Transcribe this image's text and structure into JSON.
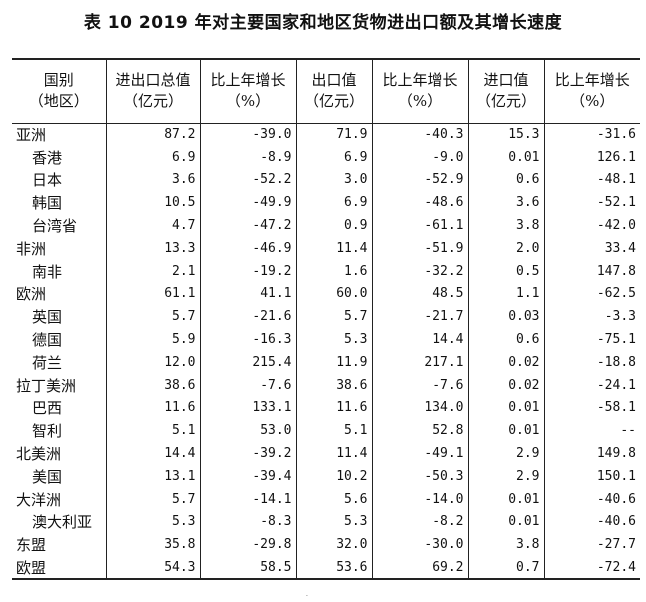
{
  "title": "表 10    2019 年对主要国家和地区货物进出口额及其增长速度",
  "headers": [
    {
      "line1": "国别",
      "line2": "（地区）"
    },
    {
      "line1": "进出口总值",
      "line2": "（亿元）"
    },
    {
      "line1": "比上年增长",
      "line2": "（%）"
    },
    {
      "line1": "出口值",
      "line2": "（亿元）"
    },
    {
      "line1": "比上年增长",
      "line2": "（%）"
    },
    {
      "line1": "进口值",
      "line2": "（亿元）"
    },
    {
      "line1": "比上年增长",
      "line2": "（%）"
    }
  ],
  "rows": [
    {
      "name": "亚洲",
      "level": 0,
      "values": [
        "87.2",
        "-39.0",
        "71.9",
        "-40.3",
        "15.3",
        "-31.6"
      ]
    },
    {
      "name": "香港",
      "level": 1,
      "values": [
        "6.9",
        "-8.9",
        "6.9",
        "-9.0",
        "0.01",
        "126.1"
      ]
    },
    {
      "name": "日本",
      "level": 1,
      "values": [
        "3.6",
        "-52.2",
        "3.0",
        "-52.9",
        "0.6",
        "-48.1"
      ]
    },
    {
      "name": "韩国",
      "level": 1,
      "values": [
        "10.5",
        "-49.9",
        "6.9",
        "-48.6",
        "3.6",
        "-52.1"
      ]
    },
    {
      "name": "台湾省",
      "level": 1,
      "values": [
        "4.7",
        "-47.2",
        "0.9",
        "-61.1",
        "3.8",
        "-42.0"
      ]
    },
    {
      "name": "非洲",
      "level": 0,
      "values": [
        "13.3",
        "-46.9",
        "11.4",
        "-51.9",
        "2.0",
        "33.4"
      ]
    },
    {
      "name": "南非",
      "level": 1,
      "values": [
        "2.1",
        "-19.2",
        "1.6",
        "-32.2",
        "0.5",
        "147.8"
      ]
    },
    {
      "name": "欧洲",
      "level": 0,
      "values": [
        "61.1",
        "41.1",
        "60.0",
        "48.5",
        "1.1",
        "-62.5"
      ]
    },
    {
      "name": "英国",
      "level": 1,
      "values": [
        "5.7",
        "-21.6",
        "5.7",
        "-21.7",
        "0.03",
        "-3.3"
      ]
    },
    {
      "name": "德国",
      "level": 1,
      "values": [
        "5.9",
        "-16.3",
        "5.3",
        "14.4",
        "0.6",
        "-75.1"
      ]
    },
    {
      "name": "荷兰",
      "level": 1,
      "values": [
        "12.0",
        "215.4",
        "11.9",
        "217.1",
        "0.02",
        "-18.8"
      ]
    },
    {
      "name": "拉丁美洲",
      "level": 0,
      "values": [
        "38.6",
        "-7.6",
        "38.6",
        "-7.6",
        "0.02",
        "-24.1"
      ]
    },
    {
      "name": "巴西",
      "level": 1,
      "values": [
        "11.6",
        "133.1",
        "11.6",
        "134.0",
        "0.01",
        "-58.1"
      ]
    },
    {
      "name": "智利",
      "level": 1,
      "values": [
        "5.1",
        "53.0",
        "5.1",
        "52.8",
        "0.01",
        "--"
      ]
    },
    {
      "name": "北美洲",
      "level": 0,
      "values": [
        "14.4",
        "-39.2",
        "11.4",
        "-49.1",
        "2.9",
        "149.8"
      ]
    },
    {
      "name": "美国",
      "level": 1,
      "values": [
        "13.1",
        "-39.4",
        "10.2",
        "-50.3",
        "2.9",
        "150.1"
      ]
    },
    {
      "name": "大洋洲",
      "level": 0,
      "values": [
        "5.7",
        "-14.1",
        "5.6",
        "-14.0",
        "0.01",
        "-40.6"
      ]
    },
    {
      "name": "澳大利亚",
      "level": 1,
      "values": [
        "5.3",
        "-8.3",
        "5.3",
        "-8.2",
        "0.01",
        "-40.6"
      ]
    },
    {
      "name": "东盟",
      "level": 0,
      "values": [
        "35.8",
        "-29.8",
        "32.0",
        "-30.0",
        "3.8",
        "-27.7"
      ]
    },
    {
      "name": "欧盟",
      "level": 0,
      "values": [
        "54.3",
        "58.5",
        "53.6",
        "69.2",
        "0.7",
        "-72.4"
      ]
    }
  ],
  "footnote": "·"
}
